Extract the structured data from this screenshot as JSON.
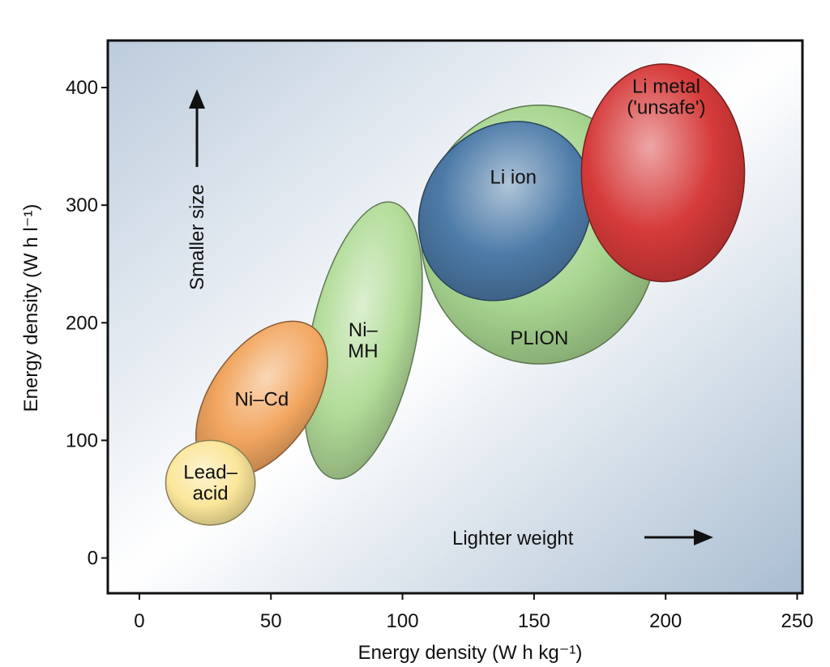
{
  "chart_data": {
    "type": "scatter",
    "xlabel": "Energy density (W h kg⁻¹)",
    "ylabel": "Energy density (W h l⁻¹)",
    "xlim": [
      -12,
      252
    ],
    "ylim": [
      -30,
      440
    ],
    "x_ticks": [
      0,
      50,
      100,
      150,
      200,
      250
    ],
    "y_ticks": [
      0,
      100,
      200,
      300,
      400
    ],
    "grid": false,
    "annotations": [
      {
        "text": "Smaller size",
        "direction": "up"
      },
      {
        "text": "Lighter weight",
        "direction": "right"
      }
    ],
    "regions": [
      {
        "name": "PLION",
        "label_lines": [
          "PLION"
        ],
        "x_range": [
          107,
          197
        ],
        "y_range": [
          165,
          385
        ],
        "color": "#a8d690"
      },
      {
        "name": "Ni–MH",
        "label_lines": [
          "Ni–",
          "MH"
        ],
        "x_range": [
          65,
          105
        ],
        "y_range": [
          65,
          305
        ],
        "color": "#b2dc98"
      },
      {
        "name": "Ni–Cd",
        "label_lines": [
          "Ni–Cd"
        ],
        "x_range": [
          27,
          66
        ],
        "y_range": [
          60,
          210
        ],
        "color": "#f2a660"
      },
      {
        "name": "Lead–acid",
        "label_lines": [
          "Lead–",
          "acid"
        ],
        "x_range": [
          10,
          44
        ],
        "y_range": [
          28,
          100
        ],
        "color": "#fbe69a"
      },
      {
        "name": "Li ion",
        "label_lines": [
          "Li ion"
        ],
        "x_range": [
          108,
          170
        ],
        "y_range": [
          215,
          375
        ],
        "color": "#4d7ba8"
      },
      {
        "name": "Li metal ('unsafe')",
        "label_lines": [
          "Li metal",
          "('unsafe')"
        ],
        "x_range": [
          168,
          230
        ],
        "y_range": [
          235,
          420
        ],
        "color": "#d63a3a"
      }
    ]
  }
}
